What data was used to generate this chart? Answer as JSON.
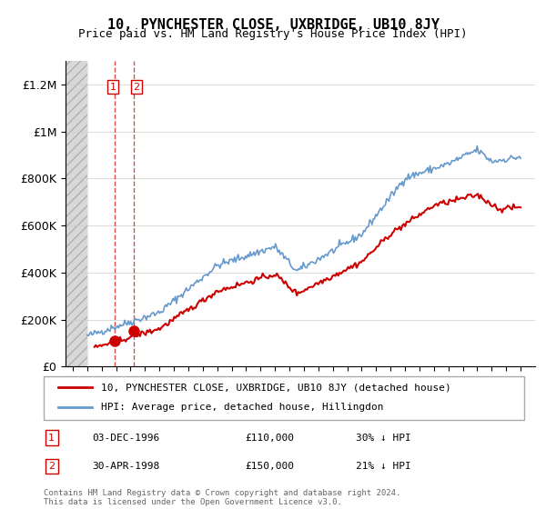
{
  "title": "10, PYNCHESTER CLOSE, UXBRIDGE, UB10 8JY",
  "subtitle": "Price paid vs. HM Land Registry's House Price Index (HPI)",
  "sale1_date": "03-DEC-1996",
  "sale1_price": 110000,
  "sale1_note": "30% ↓ HPI",
  "sale2_date": "30-APR-1998",
  "sale2_price": 150000,
  "sale2_note": "21% ↓ HPI",
  "legend_line1": "10, PYNCHESTER CLOSE, UXBRIDGE, UB10 8JY (detached house)",
  "legend_line2": "HPI: Average price, detached house, Hillingdon",
  "footer": "Contains HM Land Registry data © Crown copyright and database right 2024.\nThis data is licensed under the Open Government Licence v3.0.",
  "red_color": "#cc0000",
  "blue_color": "#6699cc",
  "background_hatch_color": "#e8e8e8",
  "ylim_max": 1300000,
  "ylabel_ticks": [
    0,
    200000,
    400000,
    600000,
    800000,
    1000000,
    1200000
  ],
  "ylabel_labels": [
    "£0",
    "£200K",
    "£400K",
    "£600K",
    "£800K",
    "£1M",
    "£1.2M"
  ]
}
